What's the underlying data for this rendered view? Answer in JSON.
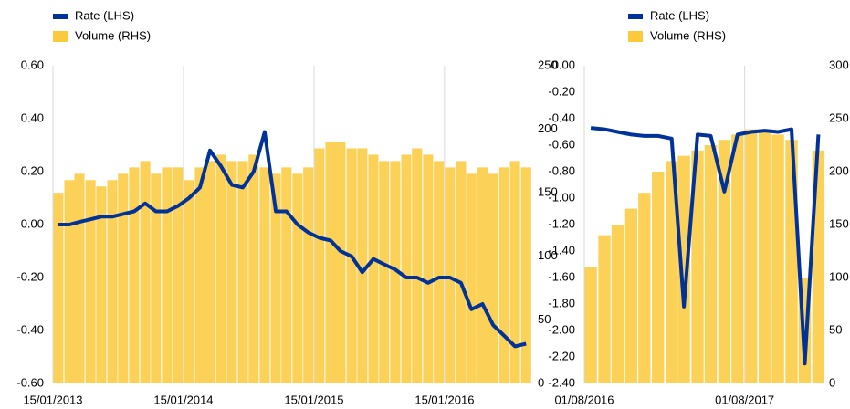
{
  "chart_data": [
    {
      "type": "combo",
      "x": [
        "15/01/2013",
        "15/02/2013",
        "15/03/2013",
        "15/04/2013",
        "15/05/2013",
        "15/06/2013",
        "15/07/2013",
        "15/08/2013",
        "15/09/2013",
        "15/10/2013",
        "15/11/2013",
        "15/12/2013",
        "15/01/2014",
        "15/02/2014",
        "15/03/2014",
        "15/04/2014",
        "15/05/2014",
        "15/06/2014",
        "15/07/2014",
        "15/08/2014",
        "15/09/2014",
        "15/10/2014",
        "15/11/2014",
        "15/12/2014",
        "15/01/2015",
        "15/02/2015",
        "15/03/2015",
        "15/04/2015",
        "15/05/2015",
        "15/06/2015",
        "15/07/2015",
        "15/08/2015",
        "15/09/2015",
        "15/10/2015",
        "15/11/2015",
        "15/12/2015",
        "15/01/2016",
        "15/02/2016",
        "15/03/2016",
        "15/04/2016",
        "15/05/2016",
        "15/06/2016",
        "15/07/2016",
        "15/08/2016"
      ],
      "series": [
        {
          "name": "Rate (LHS)",
          "type": "line",
          "color": "#003299",
          "values": [
            0.0,
            0.0,
            0.01,
            0.02,
            0.03,
            0.03,
            0.04,
            0.05,
            0.08,
            0.05,
            0.05,
            0.07,
            0.1,
            0.14,
            0.28,
            0.22,
            0.15,
            0.14,
            0.2,
            0.35,
            0.05,
            0.05,
            0.0,
            -0.03,
            -0.05,
            -0.06,
            -0.1,
            -0.12,
            -0.18,
            -0.13,
            -0.15,
            -0.17,
            -0.2,
            -0.2,
            -0.22,
            -0.2,
            -0.2,
            -0.22,
            -0.32,
            -0.3,
            -0.38,
            -0.42,
            -0.46,
            -0.45
          ]
        },
        {
          "name": "Volume (RHS)",
          "type": "bar",
          "axis": "y2",
          "color": "#fcc93a",
          "values": [
            150,
            160,
            165,
            160,
            155,
            160,
            165,
            170,
            175,
            165,
            170,
            170,
            160,
            170,
            175,
            180,
            175,
            175,
            180,
            170,
            165,
            170,
            165,
            170,
            185,
            190,
            190,
            185,
            185,
            180,
            175,
            175,
            180,
            185,
            180,
            175,
            170,
            175,
            165,
            170,
            165,
            170,
            175,
            170
          ]
        }
      ],
      "xlim": [
        "15/01/2013",
        "01/09/2016"
      ],
      "xticks": [
        "15/01/2013",
        "15/01/2014",
        "15/01/2015",
        "15/01/2016"
      ],
      "ylim": [
        -0.6,
        0.6
      ],
      "yticks": [
        {
          "value": -0.6,
          "label": "-0.60"
        },
        {
          "value": -0.4,
          "label": "-0.40"
        },
        {
          "value": -0.2,
          "label": "-0.20"
        },
        {
          "value": 0,
          "label": "0.00"
        },
        {
          "value": 0.2,
          "label": "0.20"
        },
        {
          "value": 0.4,
          "label": "0.40"
        },
        {
          "value": 0.6,
          "label": "0.60"
        }
      ],
      "y2lim": [
        0,
        250
      ],
      "y2ticks": [
        0,
        50,
        100,
        150,
        200,
        250
      ],
      "legend": "top-left"
    },
    {
      "type": "combo",
      "x": [
        "01/08/2016",
        "01/09/2016",
        "01/10/2016",
        "01/11/2016",
        "01/12/2016",
        "01/01/2017",
        "01/02/2017",
        "01/03/2017",
        "01/04/2017",
        "01/05/2017",
        "01/06/2017",
        "01/07/2017",
        "01/08/2017",
        "01/09/2017",
        "01/10/2017",
        "01/11/2017",
        "01/12/2017",
        "01/01/2018"
      ],
      "series": [
        {
          "name": "Rate (LHS)",
          "type": "line",
          "color": "#003299",
          "values": [
            -0.47,
            -0.48,
            -0.5,
            -0.52,
            -0.53,
            -0.53,
            -0.55,
            -1.82,
            -0.52,
            -0.53,
            -0.95,
            -0.52,
            -0.5,
            -0.49,
            -0.5,
            -0.48,
            -2.25,
            -0.52
          ]
        },
        {
          "name": "Volume (RHS)",
          "type": "bar",
          "axis": "y2",
          "color": "#fcc93a",
          "values": [
            110,
            140,
            150,
            165,
            180,
            200,
            210,
            215,
            220,
            225,
            230,
            235,
            240,
            240,
            235,
            230,
            100,
            220
          ]
        }
      ],
      "xlim": [
        "01/08/2016",
        "15/01/2018"
      ],
      "xticks": [
        "01/08/2016",
        "01/08/2017"
      ],
      "ylim": [
        -2.4,
        0
      ],
      "yticks": [
        {
          "value": -2.4,
          "label": "-2.40"
        },
        {
          "value": -2.2,
          "label": "-2.20"
        },
        {
          "value": -2.0,
          "label": "-2.00"
        },
        {
          "value": -1.8,
          "label": "-1.80"
        },
        {
          "value": -1.6,
          "label": "-1.60"
        },
        {
          "value": -1.4,
          "label": "-1.40"
        },
        {
          "value": -1.2,
          "label": "-1.20"
        },
        {
          "value": -1.0,
          "label": "-1.00"
        },
        {
          "value": -0.8,
          "label": "-0.80"
        },
        {
          "value": -0.6,
          "label": "-0.60"
        },
        {
          "value": -0.4,
          "label": "-0.40"
        },
        {
          "value": -0.2,
          "label": "-0.20"
        },
        {
          "value": 0,
          "label": "0.00"
        }
      ],
      "y2lim": [
        0,
        300
      ],
      "y2ticks": [
        0,
        50,
        100,
        150,
        200,
        250,
        300
      ],
      "legend": "top-left"
    }
  ]
}
